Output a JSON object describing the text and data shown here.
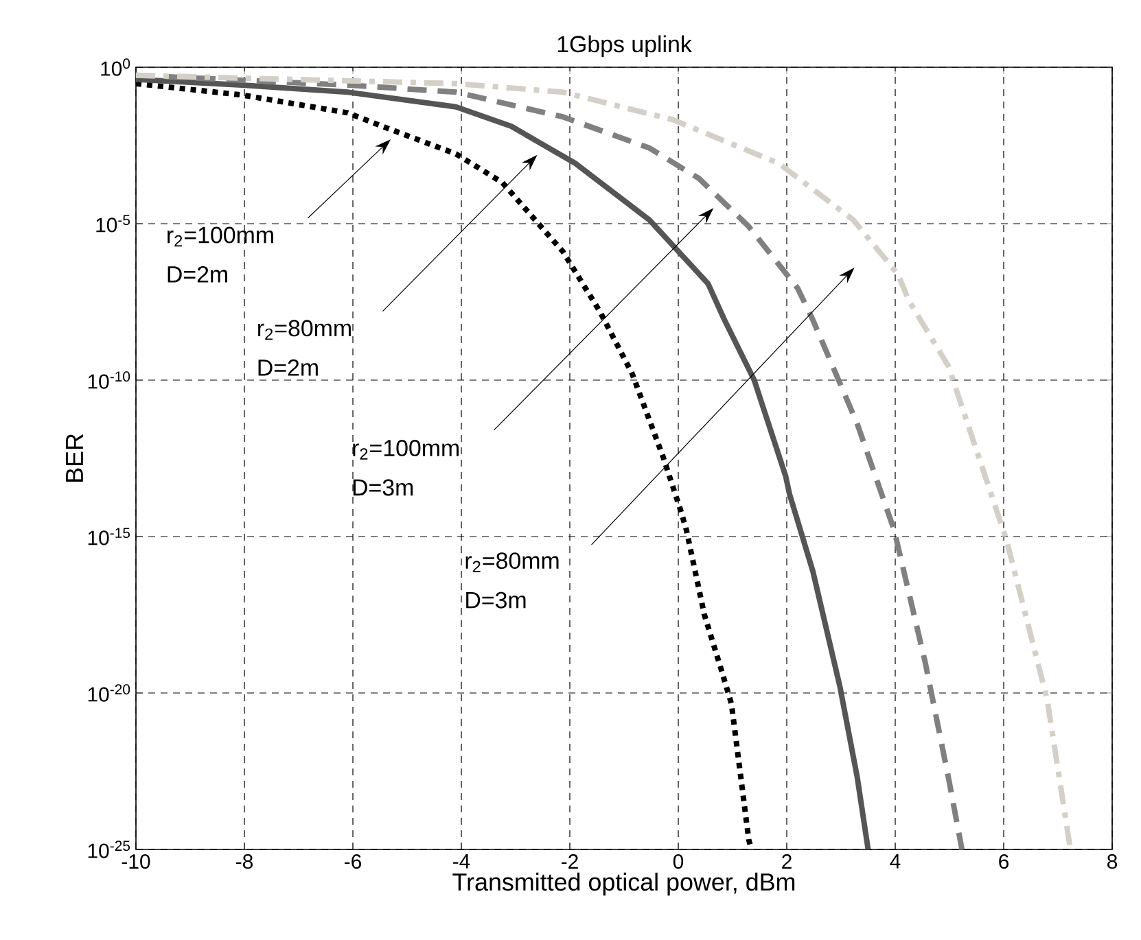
{
  "chart_data": {
    "type": "line",
    "title": "1Gbps uplink",
    "xlabel": "Transmitted optical power, dBm",
    "ylabel": "BER",
    "log": "y",
    "grid": true,
    "marker": "none",
    "xlim": [
      -10,
      8
    ],
    "xticks": [
      -10,
      -8,
      -6,
      -4,
      -2,
      0,
      2,
      4,
      6,
      8
    ],
    "ylim": [
      1e-25,
      1
    ],
    "yticks": [
      {
        "value": 1e-25,
        "label": "10$^{-25}$"
      },
      {
        "value": 1e-20,
        "label": "10$^{-20}$"
      },
      {
        "value": 1e-15,
        "label": "10$^{-15}$"
      },
      {
        "value": 1e-10,
        "label": "10$^{-10}$"
      },
      {
        "value": 1e-05,
        "label": "10$^{-5}$"
      },
      {
        "value": 1,
        "label": "10$^{0}$"
      }
    ],
    "series": [
      {
        "color": "#000000",
        "line_style": "dotted",
        "x": [
          -10,
          -8.05,
          -6.1,
          -5.35,
          -4.1,
          -3.25,
          -2.13,
          -1.45,
          -0.85,
          -0.28,
          0.05,
          0.15,
          0.48,
          0.8,
          0.98,
          1.3,
          1.35
        ],
        "values": [
          0.3,
          0.13,
          0.035,
          0.011,
          0.0017,
          0.00021,
          1.3e-06,
          1.6e-08,
          1.6e-10,
          3.5e-13,
          6.3e-15,
          1.6e-15,
          3.2e-18,
          5e-20,
          4.5e-21,
          2e-25,
          1e-25
        ]
      },
      {
        "color": "#555555",
        "line_style": "solid",
        "x": [
          -10,
          -8.05,
          -6.1,
          -4.1,
          -3.08,
          -1.9,
          -0.53,
          0.55,
          0.85,
          1.4,
          1.98,
          2.05,
          2.48,
          2.98,
          3.3,
          3.5
        ],
        "values": [
          0.41,
          0.27,
          0.16,
          0.054,
          0.013,
          0.00085,
          1.3e-05,
          1.2e-07,
          8.5e-09,
          1e-10,
          8.5e-14,
          2.3e-14,
          7.9e-17,
          1.6e-20,
          2e-23,
          1e-25
        ]
      },
      {
        "color": "#808080",
        "line_style": "dashed",
        "x": [
          -10,
          -6.1,
          -4.1,
          -2.13,
          -0.53,
          0.38,
          1.3,
          2.2,
          2.48,
          3.3,
          3.98,
          4.55,
          4.98,
          5.23
        ],
        "values": [
          0.55,
          0.27,
          0.16,
          0.026,
          0.0026,
          0.00028,
          8.1e-06,
          8.7e-08,
          8.5e-09,
          4e-12,
          1.6e-15,
          1e-19,
          2e-23,
          1e-25
        ]
      },
      {
        "color": "#d4d0c8",
        "line_style": "dashdot",
        "x": [
          -10,
          -4.1,
          -2.13,
          -0.1,
          1.85,
          3.23,
          4.05,
          4.25,
          4.98,
          6.05,
          6.8,
          7.23
        ],
        "values": [
          0.55,
          0.3,
          0.16,
          0.021,
          0.00085,
          1.3e-05,
          2.4e-07,
          3.5e-08,
          2.8e-10,
          7.9e-16,
          6.3e-21,
          1e-25
        ]
      }
    ],
    "annotations": [
      "r$_{2}$=100mm",
      "D=2m",
      "r$_{2}$=80mm",
      "D=2m",
      "r$_{2}$=100mm",
      "D=3m",
      "r$_{2}$=80mm",
      "D=3m"
    ]
  }
}
